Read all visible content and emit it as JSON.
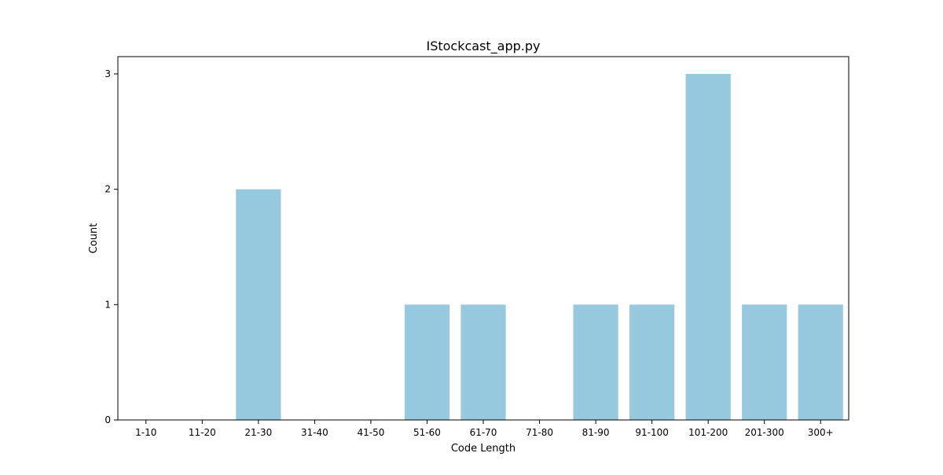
{
  "chart_data": {
    "type": "bar",
    "title": "IStockcast_app.py",
    "xlabel": "Code Length",
    "ylabel": "Count",
    "categories": [
      "1-10",
      "11-20",
      "21-30",
      "31-40",
      "41-50",
      "51-60",
      "61-70",
      "71-80",
      "81-90",
      "91-100",
      "101-200",
      "201-300",
      "300+"
    ],
    "values": [
      0,
      0,
      2,
      0,
      0,
      1,
      1,
      0,
      1,
      1,
      3,
      1,
      1
    ],
    "yticks": [
      0,
      1,
      2,
      3
    ],
    "ylim": [
      0,
      3.15
    ],
    "grid": false,
    "bar_color": "#96c9de"
  }
}
